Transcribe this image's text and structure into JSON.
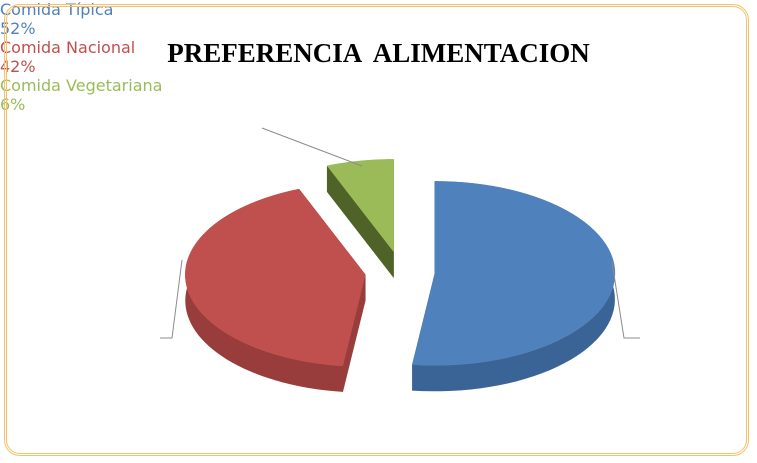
{
  "chart_data": {
    "type": "pie",
    "title": "PREFERENCIA  ALIMENTACION",
    "categories": [
      "Comida Típica",
      "Comida Nacional",
      "Comida Vegetariana"
    ],
    "values": [
      52,
      42,
      6
    ],
    "value_labels": [
      "52%",
      "42%",
      "6%"
    ],
    "colors": [
      "#4f81bd",
      "#c0504d",
      "#9bbb59"
    ],
    "side_colors": [
      "#3b6496",
      "#983d3b",
      "#4f6228"
    ]
  }
}
